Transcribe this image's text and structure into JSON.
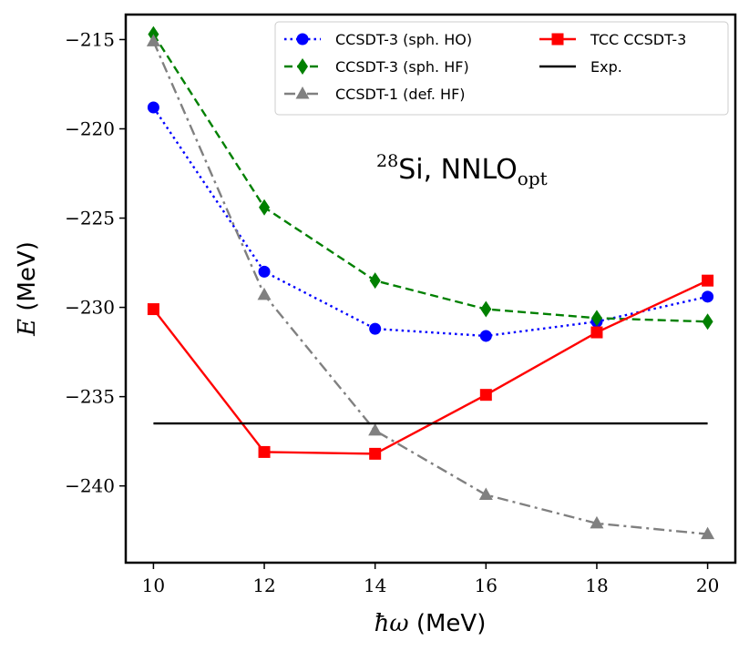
{
  "chart_data": {
    "type": "line",
    "xlabel_math": "ħω",
    "xlabel_unit": " (MeV)",
    "ylabel_math": "E",
    "ylabel_unit": " (MeV)",
    "xlim": [
      9.5,
      20.5
    ],
    "ylim": [
      -244.3,
      -213.6
    ],
    "xticks": [
      10,
      12,
      14,
      16,
      18,
      20
    ],
    "yticks": [
      -215,
      -220,
      -225,
      -230,
      -235,
      -240
    ],
    "grid": false,
    "legend_position": "top-right",
    "annotation": {
      "mass_number": "28",
      "element": "Si, NNLO",
      "subscript": "opt"
    },
    "series": [
      {
        "name": "CCSDT-3 (sph. HO)",
        "color": "#0000ff",
        "line_style": "dotted",
        "marker": "circle",
        "x": [
          10,
          12,
          14,
          16,
          18,
          20
        ],
        "y": [
          -218.8,
          -228.0,
          -231.2,
          -231.6,
          -230.8,
          -229.4
        ]
      },
      {
        "name": "CCSDT-3 (sph. HF)",
        "color": "#008000",
        "line_style": "dashed",
        "marker": "diamond",
        "x": [
          10,
          12,
          14,
          16,
          18,
          20
        ],
        "y": [
          -214.7,
          -224.4,
          -228.5,
          -230.1,
          -230.6,
          -230.8
        ]
      },
      {
        "name": "CCSDT-1 (def. HF)",
        "color": "#808080",
        "line_style": "dashdot",
        "marker": "triangle",
        "x": [
          10,
          12,
          14,
          16,
          18,
          20
        ],
        "y": [
          -215.1,
          -229.3,
          -236.9,
          -240.5,
          -242.1,
          -242.7
        ]
      },
      {
        "name": "TCC CCSDT-3",
        "color": "#ff0000",
        "line_style": "solid",
        "marker": "square",
        "x": [
          10,
          12,
          14,
          16,
          18,
          20
        ],
        "y": [
          -230.1,
          -238.1,
          -238.2,
          -234.9,
          -231.4,
          -228.5
        ]
      },
      {
        "name": "Exp.",
        "color": "#000000",
        "line_style": "solid",
        "marker": "none",
        "x": [
          10,
          20
        ],
        "y": [
          -236.5,
          -236.5
        ]
      }
    ]
  }
}
